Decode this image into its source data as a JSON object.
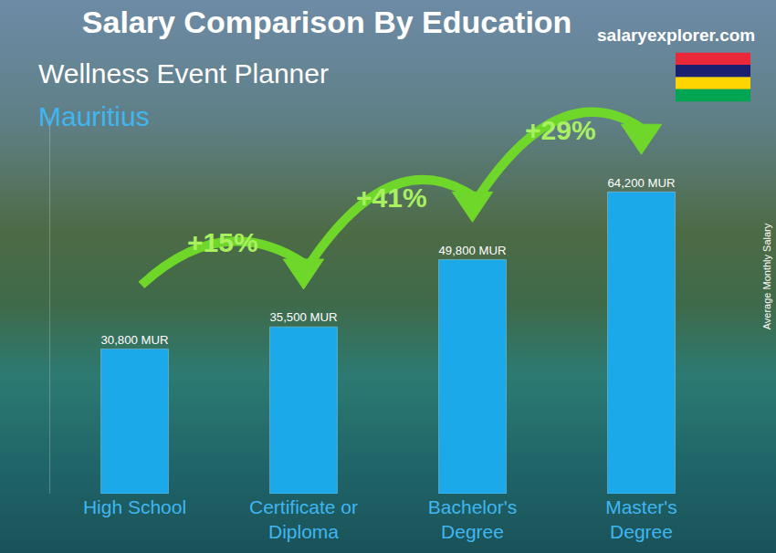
{
  "chart_data": {
    "type": "bar",
    "title": "Salary Comparison By Education",
    "subtitle": "Wellness Event Planner",
    "location": "Mauritius",
    "source": "salaryexplorer.com",
    "y_label": "Average Monthly Salary",
    "categories": [
      "High School",
      "Certificate or Diploma",
      "Bachelor's Degree",
      "Master's Degree"
    ],
    "values": [
      30800,
      35500,
      49800,
      64200
    ],
    "value_labels": [
      "30,800 MUR",
      "35,500 MUR",
      "49,800 MUR",
      "64,200 MUR"
    ],
    "annotations": [
      "+15%",
      "+41%",
      "+29%"
    ],
    "color": "#1ba9e9",
    "ylim": [
      0,
      80000
    ],
    "data_labels": true,
    "tick_labels": "x",
    "grid": false
  }
}
